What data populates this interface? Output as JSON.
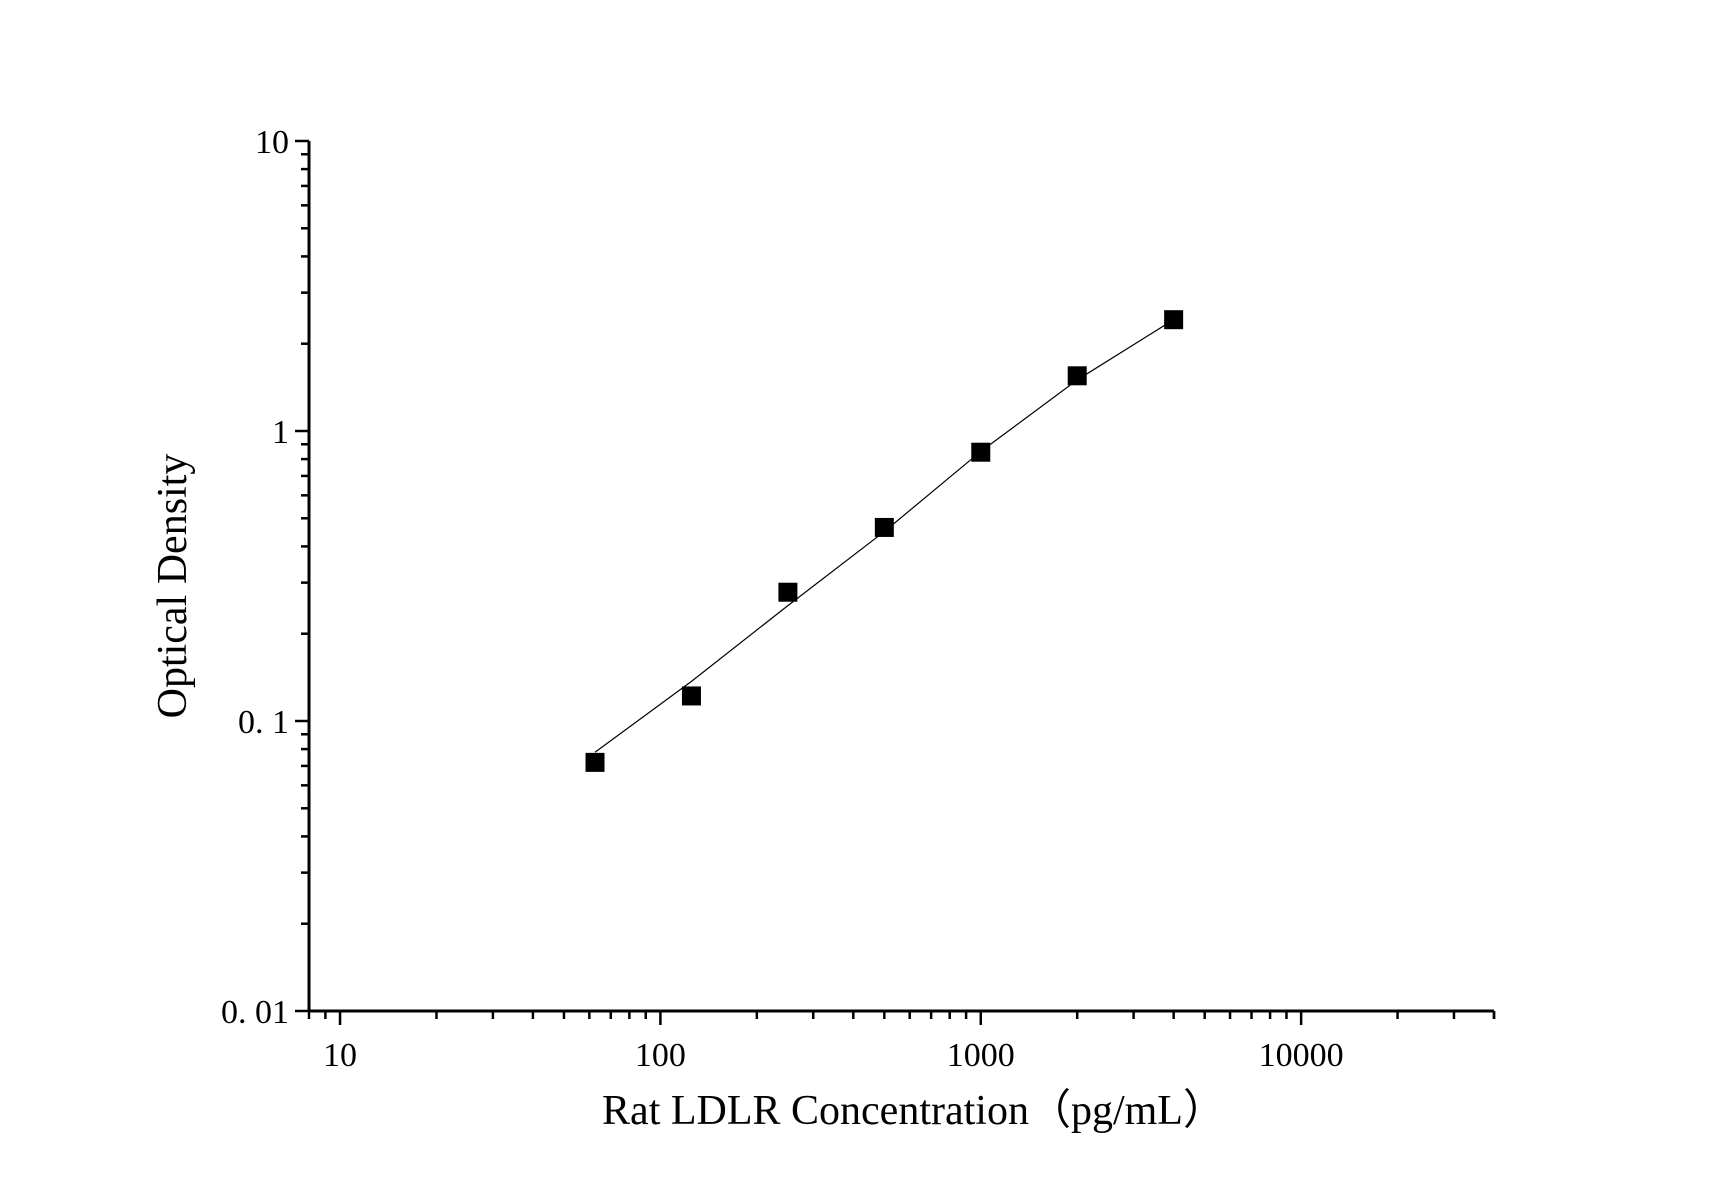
{
  "chart_data": {
    "type": "scatter",
    "xlabel": "Rat LDLR Concentration（pg/mL）",
    "ylabel": "Optical Density",
    "x_scale": "log",
    "y_scale": "log",
    "xlim": [
      8,
      40000
    ],
    "ylim": [
      0.01,
      10
    ],
    "x_ticks": [
      {
        "value": 10,
        "label": "10"
      },
      {
        "value": 100,
        "label": "100"
      },
      {
        "value": 1000,
        "label": "1000"
      },
      {
        "value": 10000,
        "label": "10000"
      }
    ],
    "y_ticks": [
      {
        "value": 0.01,
        "label": "0. 01"
      },
      {
        "value": 0.1,
        "label": "0. 1"
      },
      {
        "value": 1,
        "label": "1"
      },
      {
        "value": 10,
        "label": "10"
      }
    ],
    "grid": false,
    "marker": "square",
    "series": [
      {
        "x": [
          62.5,
          125,
          250,
          500,
          1000,
          2000,
          4000
        ],
        "y": [
          0.072,
          0.122,
          0.278,
          0.465,
          0.845,
          1.55,
          2.42
        ]
      }
    ],
    "fit_line": {
      "x": [
        62.5,
        125,
        250,
        500,
        1000,
        2000,
        4000
      ],
      "y": [
        0.078,
        0.137,
        0.25,
        0.45,
        0.85,
        1.5,
        2.42
      ]
    },
    "colors": {
      "marker": "#000000",
      "axis": "#000000"
    }
  }
}
